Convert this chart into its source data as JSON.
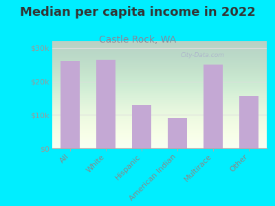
{
  "title": "Median per capita income in 2022",
  "subtitle": "Castle Rock, WA",
  "categories": [
    "All",
    "White",
    "Hispanic",
    "American Indian",
    "Multirace",
    "Other"
  ],
  "values": [
    26000,
    26500,
    13000,
    9000,
    25000,
    15500
  ],
  "bar_color": "#c4a8d4",
  "background_outer": "#00EEFF",
  "title_fontsize": 13,
  "subtitle_fontsize": 10,
  "subtitle_color": "#888899",
  "tick_label_color": "#888888",
  "ytick_color": "#999999",
  "ylim": [
    0,
    32000
  ],
  "yticks": [
    0,
    10000,
    20000,
    30000
  ],
  "watermark": "City-Data.com",
  "grid_color": "#dddddd"
}
